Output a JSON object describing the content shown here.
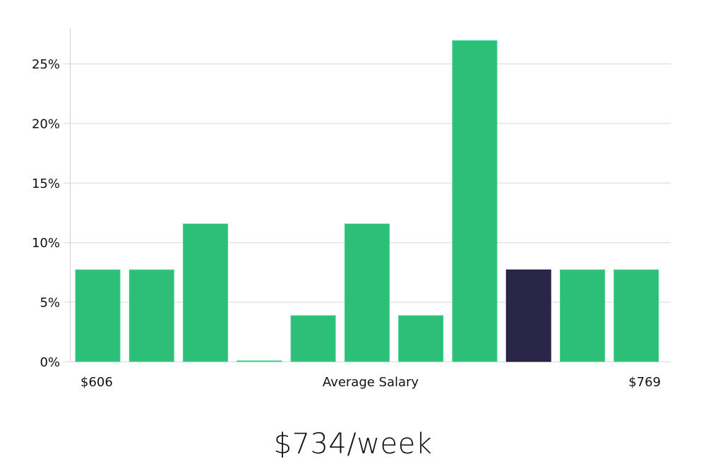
{
  "chart_data": {
    "type": "bar",
    "title": "",
    "xlabel": "Average Salary",
    "ylabel": "",
    "x_range_labels": {
      "min": "$606",
      "max": "$769"
    },
    "categories": [
      "bin1",
      "bin2",
      "bin3",
      "bin4",
      "bin5",
      "bin6",
      "bin7",
      "bin8",
      "bin9",
      "bin10",
      "bin11"
    ],
    "values": [
      7.69,
      7.69,
      11.54,
      0,
      3.85,
      11.54,
      3.85,
      26.92,
      7.69,
      7.69,
      7.69
    ],
    "highlight_index": 8,
    "ylim": [
      0,
      28
    ],
    "yticks": [
      0,
      5,
      10,
      15,
      20,
      25
    ],
    "ytick_labels": [
      "0%",
      "5%",
      "10%",
      "15%",
      "20%",
      "25%"
    ],
    "grid": true,
    "colors": {
      "bar": "#2bbf77",
      "highlight": "#29264a",
      "grid": "#d9d9d9",
      "axis": "#cccccc"
    },
    "summary_value": "$734/week"
  },
  "labels": {
    "min": "$606",
    "center": "Average Salary",
    "max": "$769",
    "summary": "$734/week"
  }
}
